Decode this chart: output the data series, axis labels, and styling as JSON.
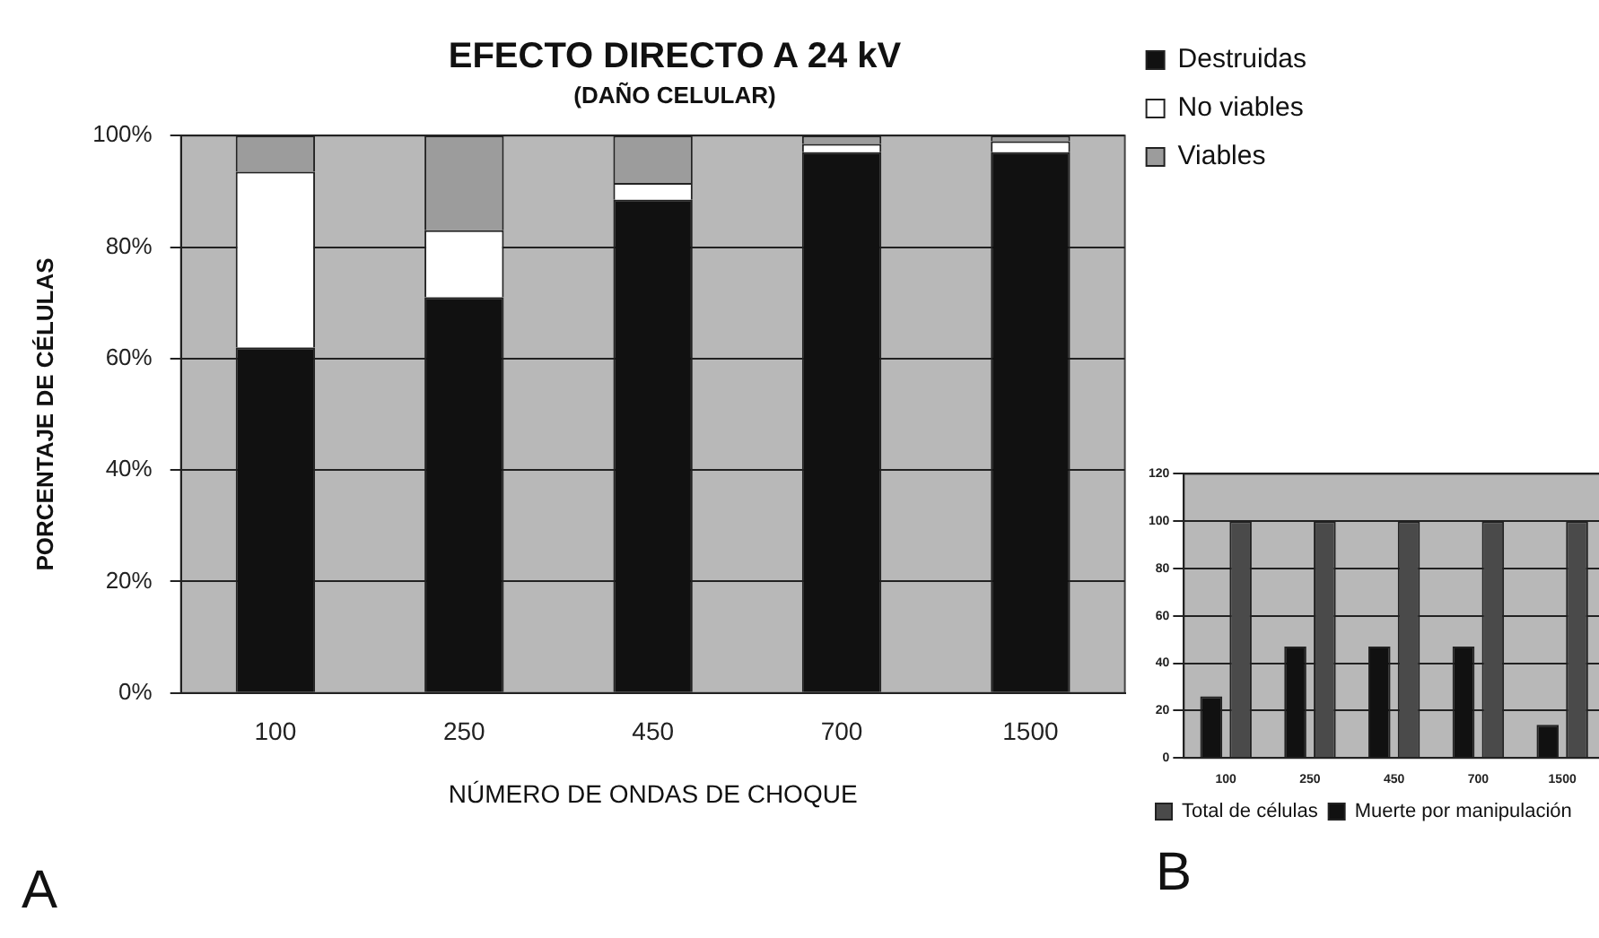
{
  "chart_data": [
    {
      "type": "bar",
      "title": "EFECTO DIRECTO A 24 kV",
      "subtitle": "(DAÑO CELULAR)",
      "xlabel": "NÚMERO DE ONDAS DE CHOQUE",
      "ylabel": "PORCENTAJE DE CÉLULAS",
      "categories": [
        "100",
        "250",
        "450",
        "700",
        "1500"
      ],
      "stacked": true,
      "series": [
        {
          "name": "Destruidas",
          "color": "#111111",
          "values": [
            62,
            71,
            88.5,
            97,
            97
          ]
        },
        {
          "name": "No viables",
          "color": "#ffffff",
          "values": [
            31.5,
            12,
            3,
            1.5,
            2
          ]
        },
        {
          "name": "Viables",
          "color": "#9c9c9c",
          "values": [
            6.5,
            17,
            8.5,
            1.5,
            1
          ]
        }
      ],
      "ylim": [
        0,
        100
      ],
      "yticks": [
        {
          "value": 0,
          "label": "0%"
        },
        {
          "value": 20,
          "label": "20%"
        },
        {
          "value": 40,
          "label": "40%"
        },
        {
          "value": 60,
          "label": "60%"
        },
        {
          "value": 80,
          "label": "80%"
        },
        {
          "value": 100,
          "label": "100%"
        }
      ],
      "grid": "y",
      "legend": "right",
      "annotations": [
        "A"
      ]
    },
    {
      "type": "bar",
      "categories": [
        "100",
        "250",
        "450",
        "700",
        "1500"
      ],
      "series": [
        {
          "name": "Muerte por manipulación",
          "color": "#111111",
          "values": [
            26,
            47,
            47,
            47,
            14
          ]
        },
        {
          "name": "Total de células",
          "color": "#4a4a4a",
          "values": [
            100,
            100,
            100,
            100,
            100
          ]
        }
      ],
      "ylim": [
        0,
        120
      ],
      "yticks": [
        0,
        20,
        40,
        60,
        80,
        100,
        120
      ],
      "grid": "y",
      "legend": "bottom",
      "annotations": [
        "B"
      ]
    }
  ]
}
